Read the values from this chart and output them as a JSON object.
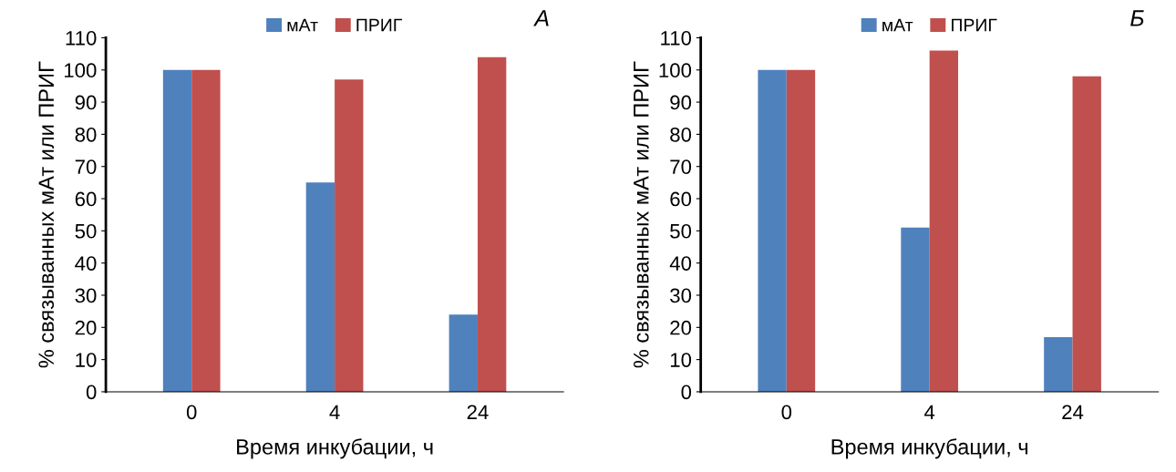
{
  "chart_data": [
    {
      "type": "bar",
      "categories": [
        "0",
        "4",
        "24"
      ],
      "xlabel": "Время инкубации, ч",
      "ylabel": "% связыванных мАт или ПРИГ",
      "ylim": [
        0,
        110
      ],
      "yticks": [
        0,
        10,
        20,
        30,
        40,
        50,
        60,
        70,
        80,
        90,
        100,
        110
      ],
      "legend": "top",
      "grid": false,
      "annotations": [
        "А"
      ],
      "series": [
        {
          "name": "мАт",
          "color": "#4f81bd",
          "values": [
            100,
            65,
            24
          ]
        },
        {
          "name": "ПРИГ",
          "color": "#c0504d",
          "values": [
            100,
            97,
            104
          ]
        }
      ]
    },
    {
      "type": "bar",
      "categories": [
        "0",
        "4",
        "24"
      ],
      "xlabel": "Время инкубации, ч",
      "ylabel": "% связыванных мАт или ПРИГ",
      "ylim": [
        0,
        110
      ],
      "yticks": [
        0,
        10,
        20,
        30,
        40,
        50,
        60,
        70,
        80,
        90,
        100,
        110
      ],
      "legend": "top",
      "grid": false,
      "annotations": [
        "Б"
      ],
      "series": [
        {
          "name": "мАт",
          "color": "#4f81bd",
          "values": [
            100,
            51,
            17
          ]
        },
        {
          "name": "ПРИГ",
          "color": "#c0504d",
          "values": [
            100,
            106,
            98
          ]
        }
      ]
    }
  ]
}
